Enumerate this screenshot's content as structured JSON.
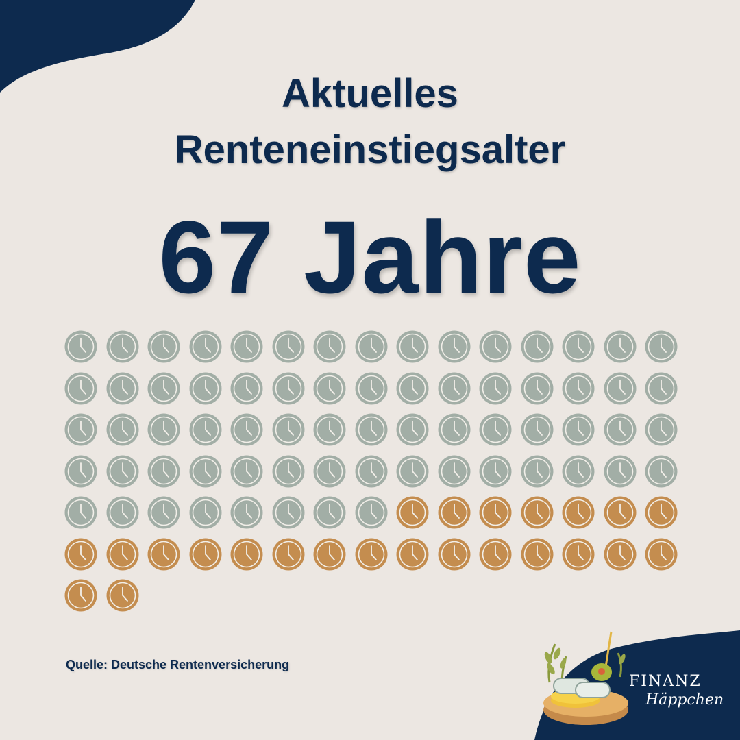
{
  "title": {
    "line1": "Aktuelles",
    "line2": "Renteneinstiegsalter"
  },
  "headline": "67 Jahre",
  "clock_grid": {
    "total": 92,
    "highlighted_from": 68,
    "colors": {
      "gray": "#a2aea6",
      "gold": "#c48d4f",
      "face_line": "#f2efe9"
    }
  },
  "source": "Quelle: Deutsche Rentenversicherung",
  "brand": {
    "top": "FINANZ",
    "sub": "Häppchen"
  },
  "colors": {
    "background": "#ece7e2",
    "navy": "#0d2a4e"
  }
}
